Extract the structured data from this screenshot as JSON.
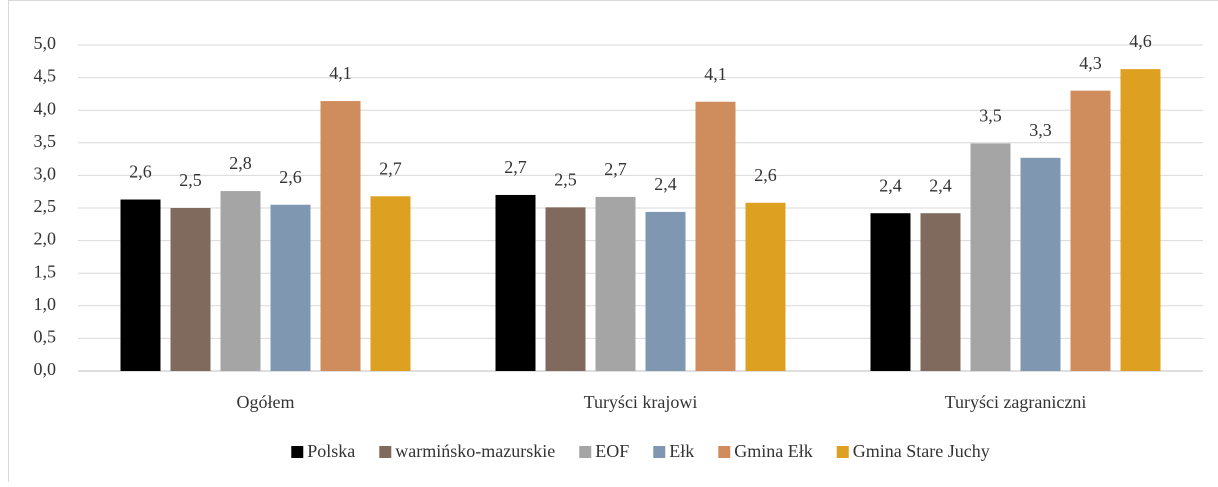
{
  "chart_data": {
    "type": "bar",
    "categories": [
      "Ogółem",
      "Turyści krajowi",
      "Turyści zagraniczni"
    ],
    "series": [
      {
        "name": "Polska",
        "color": "#000000",
        "values": [
          2.63,
          2.7,
          2.42
        ],
        "value_labels": [
          "2,6",
          "2,7",
          "2,4"
        ]
      },
      {
        "name": "warmińsko-mazurskie",
        "color": "#7f6a5d",
        "values": [
          2.5,
          2.51,
          2.42
        ],
        "value_labels": [
          "2,5",
          "2,5",
          "2,4"
        ]
      },
      {
        "name": "EOF",
        "color": "#a5a5a5",
        "values": [
          2.76,
          2.67,
          3.49
        ],
        "value_labels": [
          "2,8",
          "2,7",
          "3,5"
        ]
      },
      {
        "name": "Ełk",
        "color": "#7f97b0",
        "values": [
          2.55,
          2.44,
          3.27
        ],
        "value_labels": [
          "2,6",
          "2,4",
          "3,3"
        ]
      },
      {
        "name": "Gmina Ełk",
        "color": "#cf8c5c",
        "values": [
          4.14,
          4.13,
          4.3
        ],
        "value_labels": [
          "4,1",
          "4,1",
          "4,3"
        ]
      },
      {
        "name": "Gmina Stare Juchy",
        "color": "#dda021",
        "values": [
          2.68,
          2.58,
          4.63
        ],
        "value_labels": [
          "2,7",
          "2,6",
          "4,6"
        ]
      }
    ],
    "ylim": [
      0,
      5
    ],
    "yticks": [
      {
        "value": 0,
        "label": "0,0"
      },
      {
        "value": 0.5,
        "label": "0,5"
      },
      {
        "value": 1,
        "label": "1,0"
      },
      {
        "value": 1.5,
        "label": "1,5"
      },
      {
        "value": 2,
        "label": "2,0"
      },
      {
        "value": 2.5,
        "label": "2,5"
      },
      {
        "value": 3,
        "label": "3,0"
      },
      {
        "value": 3.5,
        "label": "3,5"
      },
      {
        "value": 4,
        "label": "4,0"
      },
      {
        "value": 4.5,
        "label": "4,5"
      },
      {
        "value": 5,
        "label": "5,0"
      }
    ],
    "grid": true,
    "legend": "bottom"
  }
}
